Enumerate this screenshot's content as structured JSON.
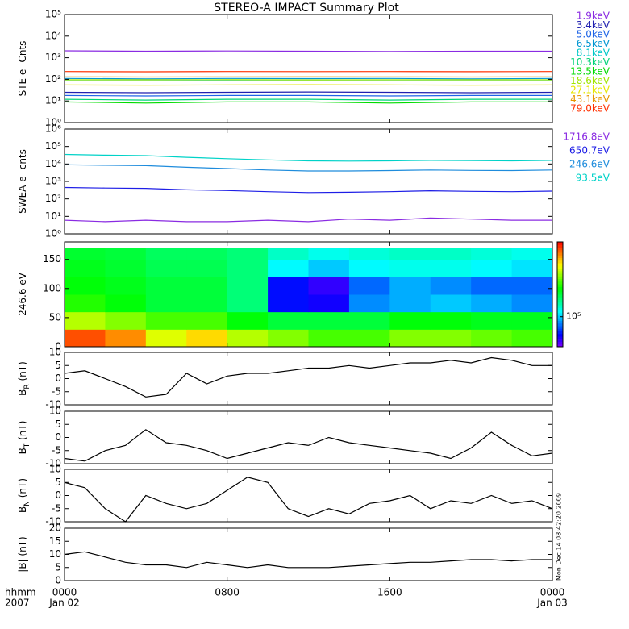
{
  "title": "STEREO-A IMPACT Summary Plot",
  "x_axis": {
    "xlim": [
      0,
      24
    ],
    "xticks": [
      {
        "value": 0,
        "label": "0000"
      },
      {
        "value": 8,
        "label": "0800"
      },
      {
        "value": 16,
        "label": "1600"
      },
      {
        "value": 24,
        "label": "0000"
      }
    ],
    "tick_sublabels": [
      "Jan 02",
      null,
      null,
      "Jan 03"
    ],
    "unit_label": "hhmm",
    "year": "2007"
  },
  "timestamp": "Mon Dec 14 08:42:20 2009",
  "chart_data": [
    {
      "type": "line",
      "ylabel_parts": [
        "STE e- Cnts"
      ],
      "log": true,
      "legend": true,
      "ylim": [
        1,
        100000
      ],
      "yticks": [
        {
          "value": 1,
          "label": "10⁰"
        },
        {
          "value": 10,
          "label": "10¹"
        },
        {
          "value": 100,
          "label": "10²"
        },
        {
          "value": 1000,
          "label": "10³"
        },
        {
          "value": 10000,
          "label": "10⁴"
        },
        {
          "value": 100000,
          "label": "10⁵"
        }
      ],
      "x": [
        0,
        4,
        8,
        12,
        16,
        20,
        24
      ],
      "series": [
        {
          "name": "1.9keV",
          "color": "#8a2be2",
          "values": [
            2100,
            2000,
            2050,
            2000,
            1950,
            2000,
            2000
          ]
        },
        {
          "name": "3.4keV",
          "color": "#2020b0",
          "values": [
            25,
            24,
            25,
            26,
            25,
            24,
            25
          ]
        },
        {
          "name": "5.0keV",
          "color": "#1e64e6",
          "values": [
            18,
            17,
            18,
            18,
            17,
            18,
            18
          ]
        },
        {
          "name": "6.5keV",
          "color": "#0096d2",
          "values": [
            110,
            105,
            110,
            108,
            110,
            105,
            110
          ]
        },
        {
          "name": "8.1keV",
          "color": "#00c8c8",
          "values": [
            85,
            84,
            86,
            85,
            84,
            85,
            85
          ]
        },
        {
          "name": "10.3keV",
          "color": "#00d278",
          "values": [
            12,
            11,
            12,
            12,
            11,
            12,
            12
          ]
        },
        {
          "name": "13.5keV",
          "color": "#00dc00",
          "values": [
            9,
            8,
            9,
            9,
            8,
            9,
            9
          ]
        },
        {
          "name": "18.6keV",
          "color": "#a0e600",
          "values": [
            95,
            95,
            96,
            94,
            95,
            95,
            95
          ]
        },
        {
          "name": "27.1keV",
          "color": "#e6e600",
          "values": [
            55,
            54,
            55,
            56,
            55,
            54,
            55
          ]
        },
        {
          "name": "43.1keV",
          "color": "#e69600",
          "values": [
            130,
            128,
            130,
            132,
            130,
            128,
            130
          ]
        },
        {
          "name": "79.0keV",
          "color": "#ff3000",
          "values": [
            230,
            225,
            230,
            228,
            230,
            226,
            230
          ]
        }
      ]
    },
    {
      "type": "line",
      "ylabel_parts": [
        "SWEA e- cnts"
      ],
      "log": true,
      "legend": true,
      "ylim": [
        1,
        1000000
      ],
      "yticks": [
        {
          "value": 1,
          "label": "10⁰"
        },
        {
          "value": 10,
          "label": "10¹"
        },
        {
          "value": 100,
          "label": "10²"
        },
        {
          "value": 1000,
          "label": "10³"
        },
        {
          "value": 10000,
          "label": "10⁴"
        },
        {
          "value": 100000,
          "label": "10⁵"
        },
        {
          "value": 1000000,
          "label": "10⁶"
        }
      ],
      "x": [
        0,
        2,
        4,
        6,
        8,
        10,
        12,
        14,
        16,
        18,
        20,
        22,
        24
      ],
      "series": [
        {
          "name": "1716.8eV",
          "color": "#8a2be2",
          "values": [
            6,
            5,
            6,
            5,
            5,
            6,
            5,
            7,
            6,
            8,
            7,
            6,
            6
          ]
        },
        {
          "name": "650.7eV",
          "color": "#1e1ee6",
          "values": [
            450,
            420,
            400,
            330,
            300,
            260,
            230,
            240,
            260,
            290,
            270,
            260,
            280
          ]
        },
        {
          "name": "246.6eV",
          "color": "#1e8cdc",
          "values": [
            9000,
            8500,
            8000,
            6500,
            5500,
            4500,
            4000,
            4000,
            4200,
            4500,
            4300,
            4200,
            4500
          ]
        },
        {
          "name": "93.5eV",
          "color": "#00d2c8",
          "values": [
            35000,
            32000,
            30000,
            24000,
            20000,
            17000,
            15000,
            14500,
            15000,
            16000,
            15500,
            15000,
            16000
          ]
        }
      ]
    },
    {
      "type": "heatmap",
      "ylabel_parts": [
        "246.6 eV"
      ],
      "ylim": [
        0,
        180
      ],
      "yticks": [
        0,
        50,
        100,
        150
      ],
      "x_edges": [
        0,
        2,
        4,
        6,
        8,
        10,
        12,
        14,
        16,
        18,
        20,
        22,
        24
      ],
      "y_edges": [
        0,
        30,
        60,
        90,
        120,
        150,
        170
      ],
      "z": [
        [
          1500000,
          1200000,
          700000,
          900000,
          600000,
          500000,
          400000,
          400000,
          500000,
          500000,
          450000,
          400000
        ],
        [
          600000,
          500000,
          400000,
          400000,
          300000,
          250000,
          250000,
          250000,
          300000,
          300000,
          280000,
          280000
        ],
        [
          350000,
          300000,
          250000,
          250000,
          200000,
          50000,
          45000,
          80000,
          90000,
          100000,
          90000,
          80000
        ],
        [
          300000,
          280000,
          250000,
          250000,
          200000,
          50000,
          40000,
          70000,
          90000,
          80000,
          70000,
          70000
        ],
        [
          280000,
          260000,
          230000,
          230000,
          200000,
          120000,
          100000,
          120000,
          130000,
          130000,
          120000,
          110000
        ],
        [
          260000,
          250000,
          220000,
          220000,
          200000,
          150000,
          130000,
          140000,
          150000,
          150000,
          140000,
          130000
        ]
      ],
      "zlim": [
        30000,
        2000000
      ],
      "zlog": true,
      "colormap": "rainbow",
      "zticks": [
        {
          "value": 100000,
          "label": "10⁵"
        }
      ]
    },
    {
      "type": "line",
      "ylabel_parts": [
        "B",
        "R",
        " (nT)"
      ],
      "ylim": [
        -10,
        10
      ],
      "yticks": [
        -10,
        -5,
        0,
        5,
        10
      ],
      "x": [
        0,
        1,
        2,
        3,
        4,
        5,
        6,
        7,
        8,
        9,
        10,
        11,
        12,
        13,
        14,
        15,
        16,
        17,
        18,
        19,
        20,
        21,
        22,
        23,
        24
      ],
      "series": [
        {
          "color": "#000000",
          "values": [
            2,
            3,
            0,
            -3,
            -7,
            -6,
            2,
            -2,
            1,
            2,
            2,
            3,
            4,
            4,
            5,
            4,
            5,
            6,
            6,
            7,
            6,
            8,
            7,
            5,
            5
          ]
        }
      ]
    },
    {
      "type": "line",
      "ylabel_parts": [
        "B",
        "T",
        " (nT)"
      ],
      "ylim": [
        -10,
        10
      ],
      "yticks": [
        -10,
        -5,
        0,
        5,
        10
      ],
      "x": [
        0,
        1,
        2,
        3,
        4,
        5,
        6,
        7,
        8,
        9,
        10,
        11,
        12,
        13,
        14,
        15,
        16,
        17,
        18,
        19,
        20,
        21,
        22,
        23,
        24
      ],
      "series": [
        {
          "color": "#000000",
          "values": [
            -8,
            -9,
            -5,
            -3,
            3,
            -2,
            -3,
            -5,
            -8,
            -6,
            -4,
            -2,
            -3,
            0,
            -2,
            -3,
            -4,
            -5,
            -6,
            -8,
            -4,
            2,
            -3,
            -7,
            -6
          ]
        }
      ]
    },
    {
      "type": "line",
      "ylabel_parts": [
        "B",
        "N",
        " (nT)"
      ],
      "ylim": [
        -10,
        10
      ],
      "yticks": [
        -10,
        -5,
        0,
        5,
        10
      ],
      "x": [
        0,
        1,
        2,
        3,
        4,
        5,
        6,
        7,
        8,
        9,
        10,
        11,
        12,
        13,
        14,
        15,
        16,
        17,
        18,
        19,
        20,
        21,
        22,
        23,
        24
      ],
      "series": [
        {
          "color": "#000000",
          "values": [
            5,
            3,
            -5,
            -10,
            0,
            -3,
            -5,
            -3,
            2,
            7,
            5,
            -5,
            -8,
            -5,
            -7,
            -3,
            -2,
            0,
            -5,
            -2,
            -3,
            0,
            -3,
            -2,
            -5
          ]
        }
      ]
    },
    {
      "type": "line",
      "ylabel_parts": [
        "|B| (nT)"
      ],
      "ylim": [
        0,
        20
      ],
      "yticks": [
        0,
        5,
        10,
        15,
        20
      ],
      "x": [
        0,
        1,
        2,
        3,
        4,
        5,
        6,
        7,
        8,
        9,
        10,
        11,
        12,
        13,
        14,
        15,
        16,
        17,
        18,
        19,
        20,
        21,
        22,
        23,
        24
      ],
      "series": [
        {
          "color": "#000000",
          "values": [
            10,
            11,
            9,
            7,
            6,
            6,
            5,
            7,
            6,
            5,
            6,
            5,
            5,
            5,
            5.5,
            6,
            6.5,
            7,
            7,
            7.5,
            8,
            8,
            7.5,
            8,
            8
          ]
        }
      ]
    }
  ]
}
